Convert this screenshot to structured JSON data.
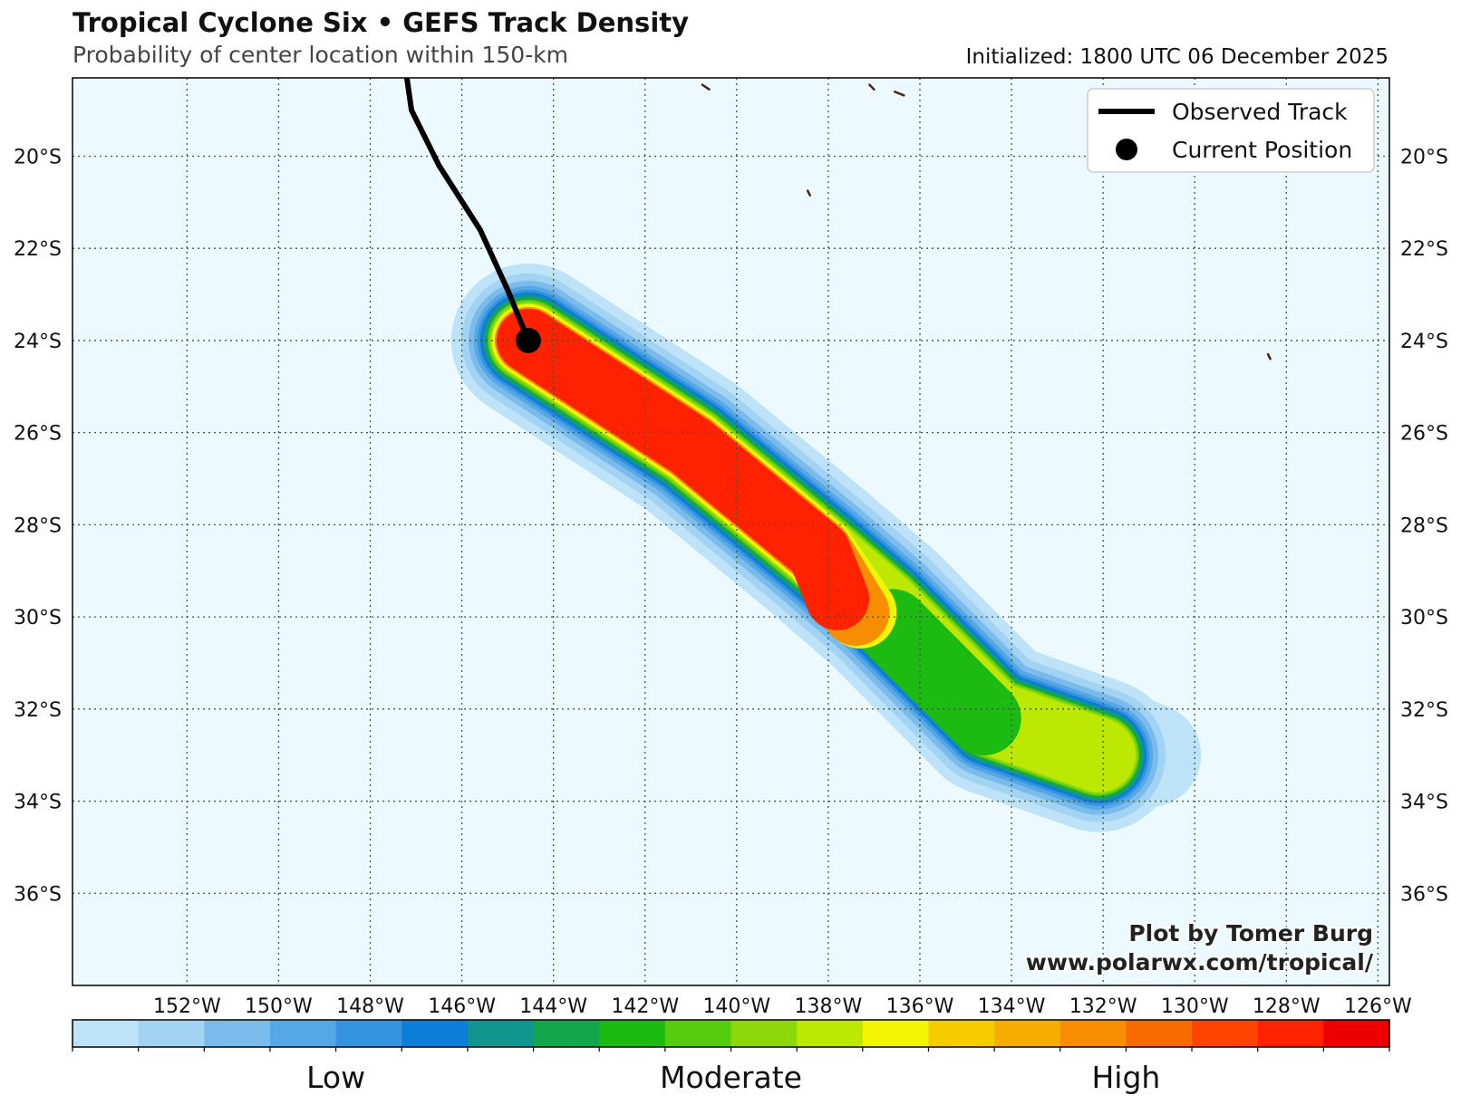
{
  "header": {
    "title": "Tropical Cyclone Six • GEFS Track Density",
    "subtitle": "Probability of center location within 150-km",
    "initialized": "Initialized: 1800 UTC 06 December 2025"
  },
  "legend": {
    "observed_track": "Observed Track",
    "current_position": "Current Position"
  },
  "credit": {
    "line1": "Plot by Tomer Burg",
    "line2": "www.polarwx.com/tropical/"
  },
  "map": {
    "lon_range": [
      -154.5,
      -125.75
    ],
    "lat_range": [
      -38.0,
      -18.3
    ],
    "lon_ticks": [
      "152°W",
      "150°W",
      "148°W",
      "146°W",
      "144°W",
      "142°W",
      "140°W",
      "138°W",
      "136°W",
      "134°W",
      "132°W",
      "130°W",
      "128°W",
      "126°W"
    ],
    "lat_ticks": [
      "20°S",
      "22°S",
      "24°S",
      "26°S",
      "28°S",
      "30°S",
      "32°S",
      "34°S",
      "36°S"
    ],
    "ocean_color": "#ecfaff",
    "grid_color": "#3c5b3c",
    "observed_track": [
      [
        -147.2,
        -18.3
      ],
      [
        -147.1,
        -19.0
      ],
      [
        -146.5,
        -20.2
      ],
      [
        -145.6,
        -21.6
      ],
      [
        -145.0,
        -22.9
      ],
      [
        -144.55,
        -24.0
      ]
    ],
    "current_position": [
      -144.55,
      -24.0
    ],
    "density_axis": [
      [
        -144.55,
        -24.0
      ],
      [
        -141.0,
        -26.3
      ],
      [
        -138.2,
        -28.6
      ],
      [
        -136.8,
        -29.8
      ],
      [
        -134.4,
        -32.2
      ],
      [
        -132.1,
        -33.0
      ]
    ]
  },
  "colorbar": {
    "colors": [
      "#bee3f8",
      "#a2d3f2",
      "#7bbbec",
      "#56a7e5",
      "#3594e0",
      "#0c7ed8",
      "#12958e",
      "#14a64a",
      "#1dbb11",
      "#55cc0d",
      "#8dd70a",
      "#bde803",
      "#f2f504",
      "#f6cc00",
      "#f5ad00",
      "#f78d00",
      "#f76a00",
      "#ff4400",
      "#ff2200",
      "#ee0000"
    ],
    "labels": [
      {
        "text": "Low",
        "at": 0.2
      },
      {
        "text": "Moderate",
        "at": 0.5
      },
      {
        "text": "High",
        "at": 0.8
      }
    ]
  }
}
